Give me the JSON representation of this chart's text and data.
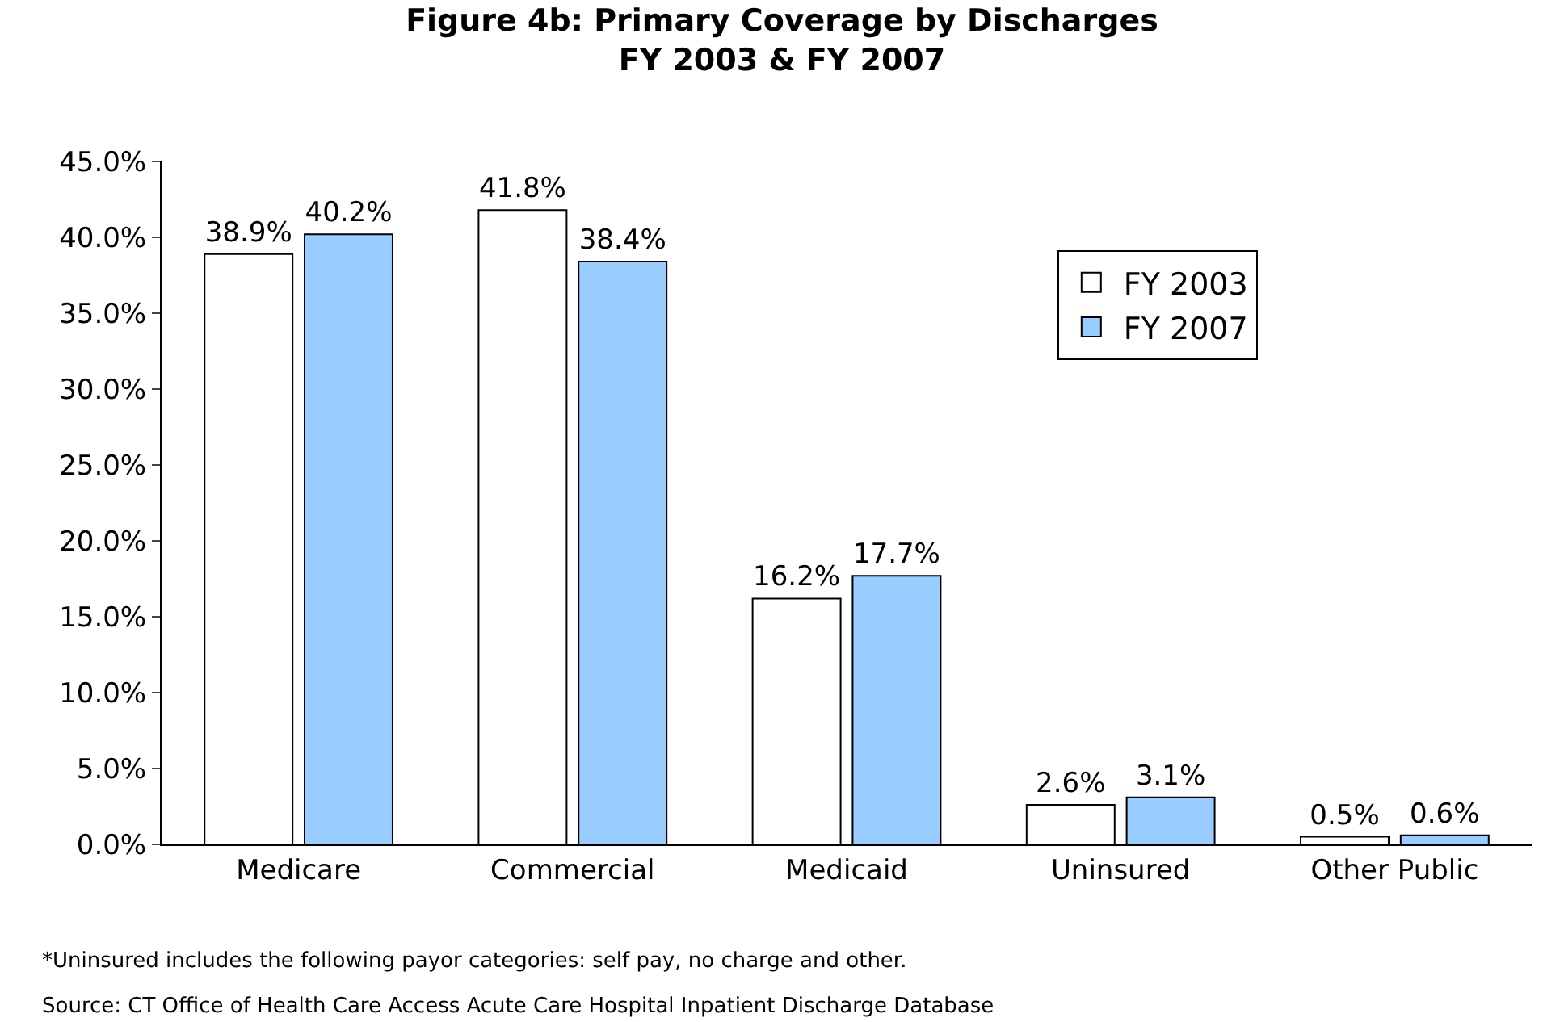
{
  "chart_data": {
    "type": "bar",
    "title": "Figure 4b: Primary Coverage by Discharges\nFY 2003 & FY 2007",
    "categories": [
      "Medicare",
      "Commercial",
      "Medicaid",
      "Uninsured",
      "Other Public"
    ],
    "series": [
      {
        "name": "FY 2003",
        "color": "#ffffff",
        "values": [
          38.9,
          41.8,
          16.2,
          2.6,
          0.5
        ],
        "value_labels": [
          "38.9%",
          "41.8%",
          "16.2%",
          "2.6%",
          "0.5%"
        ]
      },
      {
        "name": "FY 2007",
        "color": "#99ccff",
        "values": [
          40.2,
          38.4,
          17.7,
          3.1,
          0.6
        ],
        "value_labels": [
          "40.2%",
          "38.4%",
          "17.7%",
          "3.1%",
          "0.6%"
        ]
      }
    ],
    "ylim": [
      0,
      45
    ],
    "yticks": [
      {
        "value": 0,
        "label": "0.0%"
      },
      {
        "value": 5,
        "label": "5.0%"
      },
      {
        "value": 10,
        "label": "10.0%"
      },
      {
        "value": 15,
        "label": "15.0%"
      },
      {
        "value": 20,
        "label": "20.0%"
      },
      {
        "value": 25,
        "label": "25.0%"
      },
      {
        "value": 30,
        "label": "30.0%"
      },
      {
        "value": 35,
        "label": "35.0%"
      },
      {
        "value": 40,
        "label": "40.0%"
      },
      {
        "value": 45,
        "label": "45.0%"
      }
    ],
    "legend": "top right",
    "annotations": [
      "*Uninsured includes the following payor categories: self pay, no charge and other.",
      "Source: CT Office of Health Care Access Acute Care Hospital Inpatient Discharge Database"
    ]
  }
}
